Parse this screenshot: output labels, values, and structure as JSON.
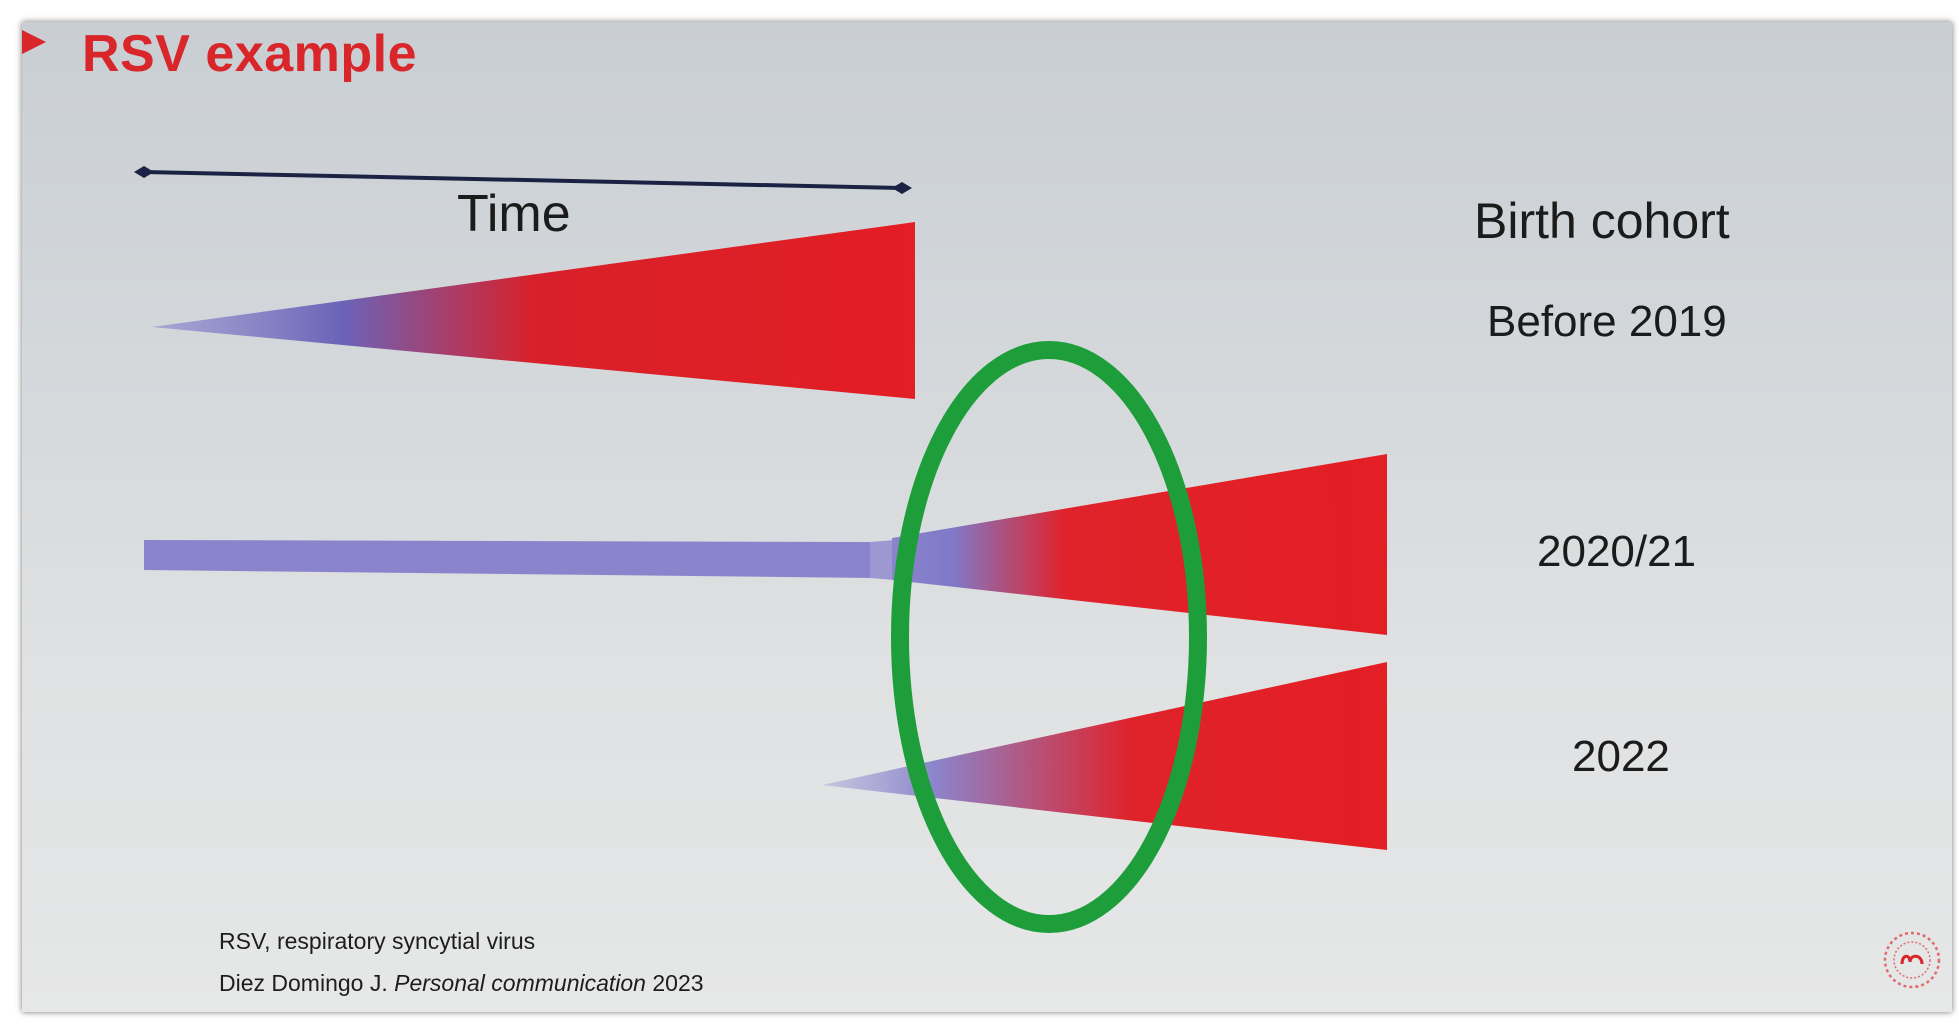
{
  "slide": {
    "title": "RSV example",
    "time_label": "Time",
    "cohort_heading": "Birth cohort",
    "cohorts": [
      "Before 2019",
      "2020/21",
      "2022"
    ],
    "footnotes": {
      "abbreviation": "RSV, respiratory syncytial virus",
      "citation_author": "Diez Domingo J.",
      "citation_title": "Personal communication",
      "citation_year": "2023"
    }
  },
  "colors": {
    "title": "#d8262b",
    "exposure_low": "#7a70c2",
    "exposure_high": "#e31e24",
    "highlight_ring": "#1e9e3b",
    "time_arrow": "#1b2244"
  },
  "icons": {
    "bullet": "red-triangle-bullet",
    "logo": "red-circular-logo"
  }
}
